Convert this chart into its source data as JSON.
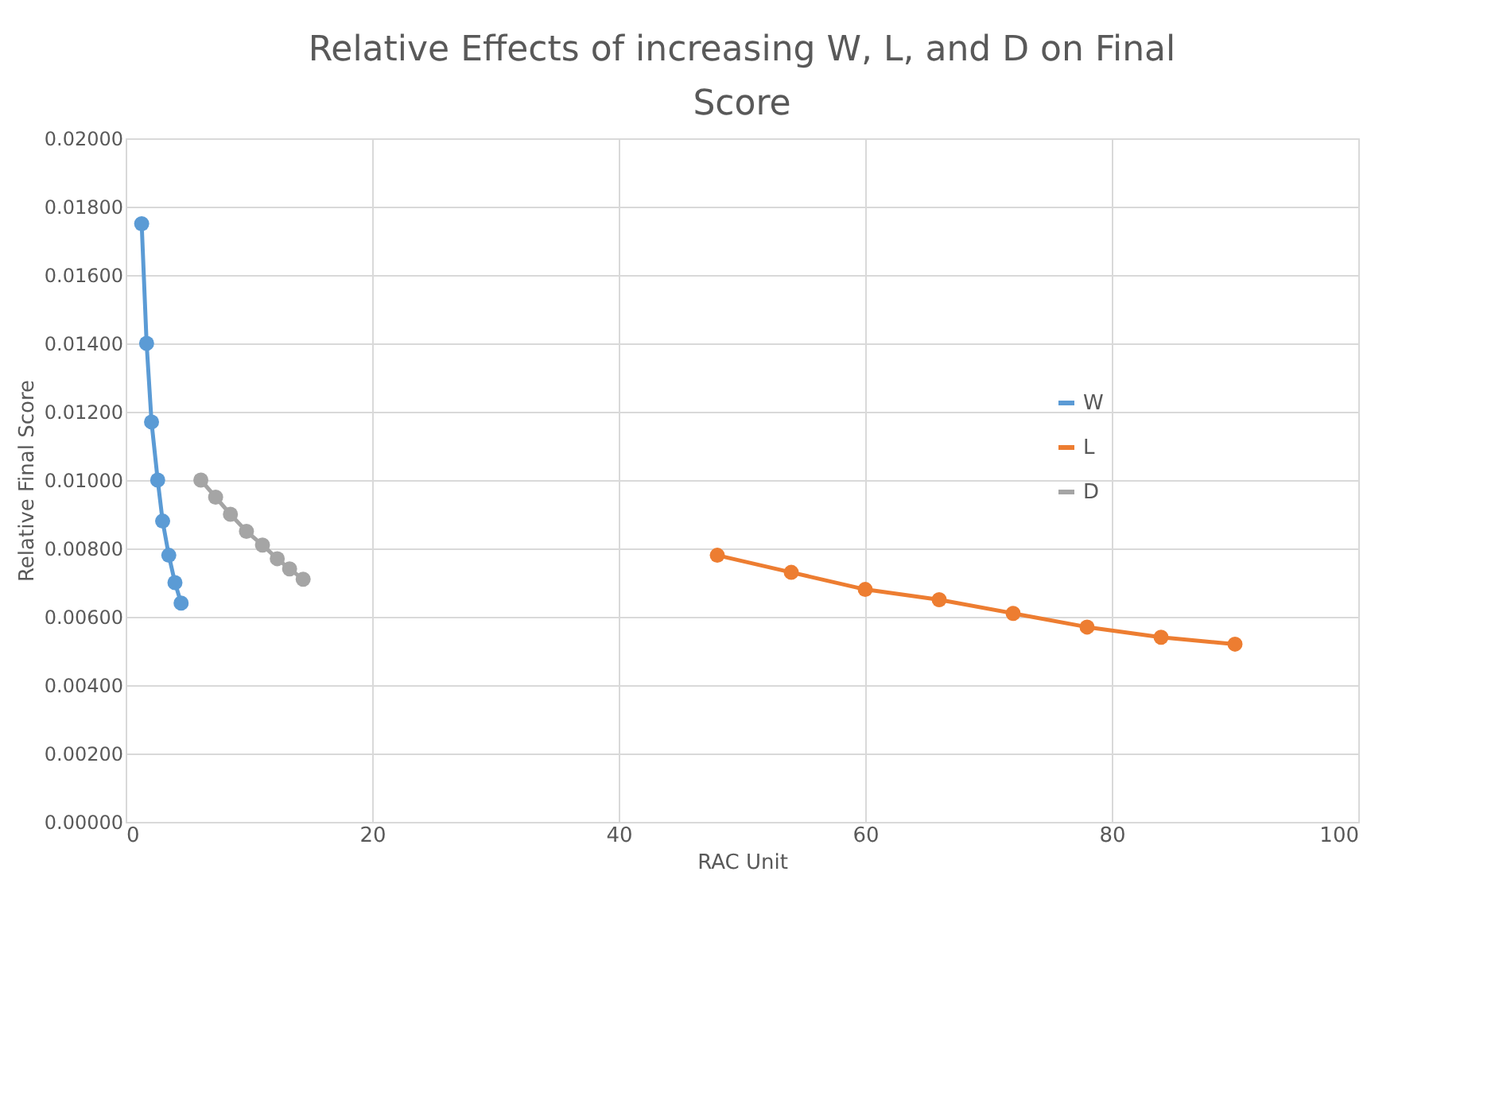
{
  "chart_data": {
    "type": "line",
    "title": "Relative Effects of increasing W, L, and D on Final Score",
    "xlabel": "RAC Unit",
    "ylabel": "Relative Final Score",
    "series": [
      {
        "name": "W",
        "color": "#5b9bd5",
        "x": [
          1.3,
          1.7,
          2.1,
          2.6,
          3.0,
          3.5,
          4.0,
          4.5
        ],
        "values": [
          0.0175,
          0.014,
          0.0117,
          0.01,
          0.0088,
          0.0078,
          0.007,
          0.0064
        ]
      },
      {
        "name": "L",
        "color": "#ed7d31",
        "x": [
          48,
          54,
          60,
          66,
          72,
          78,
          84,
          90
        ],
        "values": [
          0.0078,
          0.0073,
          0.0068,
          0.0065,
          0.0061,
          0.0057,
          0.0054,
          0.0052
        ]
      },
      {
        "name": "D",
        "color": "#a5a5a5",
        "x": [
          6.1,
          7.3,
          8.5,
          9.8,
          11.1,
          12.3,
          13.3,
          14.4
        ],
        "values": [
          0.01,
          0.0095,
          0.009,
          0.0085,
          0.0081,
          0.0077,
          0.0074,
          0.0071
        ]
      }
    ],
    "xlim": [
      0,
      100
    ],
    "xticks": [
      0,
      20,
      40,
      60,
      80,
      100
    ],
    "ylim": [
      0,
      0.02
    ],
    "yticks": [
      {
        "value": 0,
        "label": "0.00000"
      },
      {
        "value": 0.002,
        "label": "0.00200"
      },
      {
        "value": 0.004,
        "label": "0.00400"
      },
      {
        "value": 0.006,
        "label": "0.00600"
      },
      {
        "value": 0.008,
        "label": "0.00800"
      },
      {
        "value": 0.01,
        "label": "0.01000"
      },
      {
        "value": 0.012,
        "label": "0.01200"
      },
      {
        "value": 0.014,
        "label": "0.01400"
      },
      {
        "value": 0.016,
        "label": "0.01600"
      },
      {
        "value": 0.018,
        "label": "0.01800"
      },
      {
        "value": 0.02,
        "label": "0.02000"
      }
    ],
    "grid": true,
    "legend": "top right",
    "marker": "circle",
    "line_style": "solid"
  }
}
